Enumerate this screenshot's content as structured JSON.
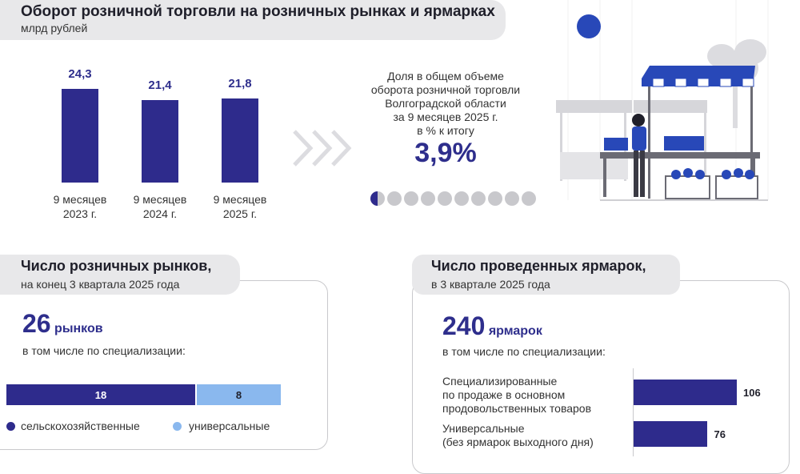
{
  "header": {
    "title": "Оборот розничной торговли на розничных рынках и ярмарках",
    "unit": "млрд рублей"
  },
  "chart_data": [
    {
      "type": "bar",
      "title": "Оборот розничной торговли на розничных рынках и ярмарках",
      "subtitle": "млрд рублей",
      "categories": [
        "9 месяцев 2023 г.",
        "9 месяцев 2024 г.",
        "9 месяцев 2025 г."
      ],
      "category_lines": [
        [
          "9 месяцев",
          "2023 г."
        ],
        [
          "9 месяцев",
          "2024 г."
        ],
        [
          "9 месяцев",
          "2025 г."
        ]
      ],
      "values": [
        24.3,
        21.4,
        21.8
      ],
      "labels": [
        "24,3",
        "21,4",
        "21,8"
      ],
      "color": "#2e2b8c"
    },
    {
      "type": "bar",
      "title": "Число розничных рынков, на конец 3 квартала 2025 года",
      "orientation": "horizontal-stacked",
      "series": [
        {
          "name": "сельскохозяйственные",
          "value": 18,
          "color": "#2e2b8c"
        },
        {
          "name": "универсальные",
          "value": 8,
          "color": "#8ab8ee"
        }
      ]
    },
    {
      "type": "bar",
      "title": "Число проведенных ярмарок, в 3 квартале 2025 года",
      "orientation": "horizontal",
      "categories": [
        "Специализированные по продаже в основном продовольственных товаров",
        "Универсальные (без ярмарок выходного дня)"
      ],
      "values": [
        106,
        76
      ],
      "xlim": [
        0,
        160
      ],
      "color": "#2e2b8c"
    }
  ],
  "share": {
    "lines": [
      "Доля в общем объеме",
      "оборота розничной торговли",
      "Волгоградской области",
      "за 9 месяцев 2025 г.",
      "в % к итогу"
    ],
    "value": "3,9%",
    "dots_total": 10,
    "dots_filled_fraction": 0.039
  },
  "markets": {
    "title": "Число розничных рынков,",
    "subtitle": "на конец 3 квартала 2025 года",
    "count": "26",
    "unit": "рынков",
    "note": "в том числе по специализации:",
    "seg1": "18",
    "seg2": "8",
    "legend1": "сельскохозяйственные",
    "legend2": "универсальные"
  },
  "fairs": {
    "title": "Число проведенных ярмарок,",
    "subtitle": "в 3 квартале 2025 года",
    "count": "240",
    "unit": "ярмарок",
    "note": "в том числе по специализации:",
    "cat1_lines": [
      "Специализированные",
      "по продаже в основном",
      "продовольственных товаров"
    ],
    "cat2_lines": [
      "Универсальные",
      "(без ярмарок выходного дня)"
    ],
    "val1": "106",
    "val2": "76"
  },
  "colors": {
    "accent": "#2e2b8c",
    "light_accent": "#8ab8ee",
    "awning": "#2848b8",
    "grey": "#c8c8cc"
  }
}
